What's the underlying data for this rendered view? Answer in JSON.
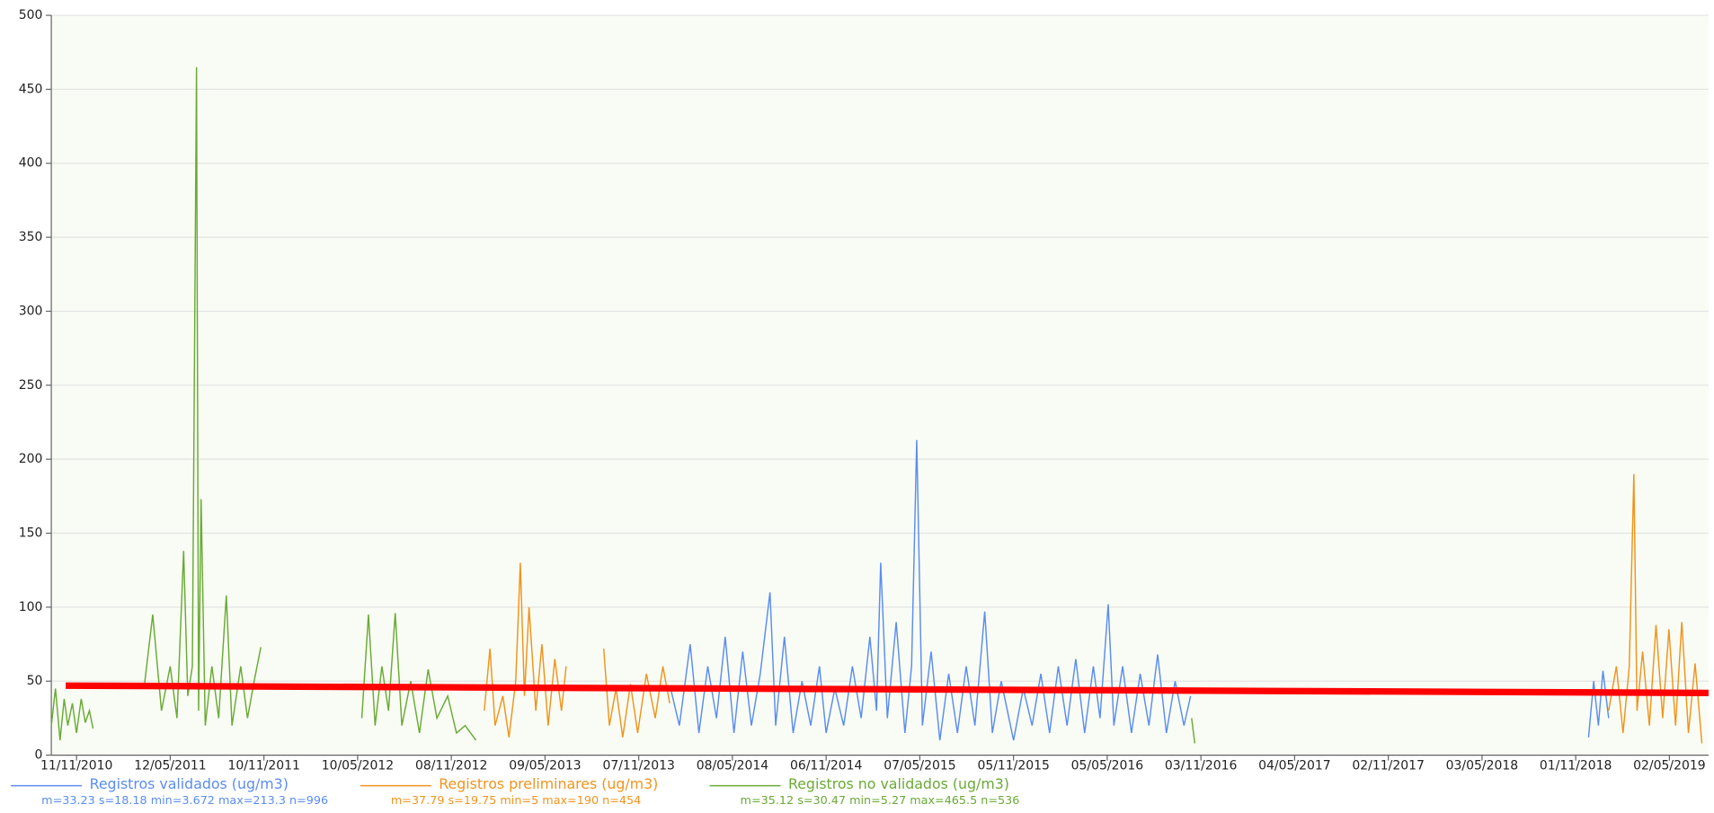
{
  "chart_data": {
    "type": "line",
    "xlim": [
      "2010-09-23",
      "2019-07-17"
    ],
    "xticks": [
      {
        "value": "2010-11-11",
        "label": "11/11/2010"
      },
      {
        "value": "2011-05-12",
        "label": "12/05/2011"
      },
      {
        "value": "2011-11-10",
        "label": "10/11/2011"
      },
      {
        "value": "2012-05-10",
        "label": "10/05/2012"
      },
      {
        "value": "2012-11-08",
        "label": "08/11/2012"
      },
      {
        "value": "2013-05-09",
        "label": "09/05/2013"
      },
      {
        "value": "2013-11-07",
        "label": "07/11/2013"
      },
      {
        "value": "2014-05-08",
        "label": "08/05/2014"
      },
      {
        "value": "2014-11-06",
        "label": "06/11/2014"
      },
      {
        "value": "2015-05-07",
        "label": "07/05/2015"
      },
      {
        "value": "2015-11-05",
        "label": "05/11/2015"
      },
      {
        "value": "2016-05-05",
        "label": "05/05/2016"
      },
      {
        "value": "2016-11-03",
        "label": "03/11/2016"
      },
      {
        "value": "2017-05-04",
        "label": "04/05/2017"
      },
      {
        "value": "2017-11-02",
        "label": "02/11/2017"
      },
      {
        "value": "2018-05-03",
        "label": "03/05/2018"
      },
      {
        "value": "2018-11-01",
        "label": "01/11/2018"
      },
      {
        "value": "2019-05-02",
        "label": "02/05/2019"
      }
    ],
    "ylim": [
      0,
      500
    ],
    "yticks": [
      0,
      50,
      100,
      150,
      200,
      250,
      300,
      350,
      400,
      450,
      500
    ],
    "grid": true,
    "series": [
      {
        "name": "Registros validados (ug/m3)",
        "stats": "m=33.23 s=18.18 min=3.672 max=213.3 n=996",
        "color": "#5b8def",
        "x": [
          "2014-01-08",
          "2014-01-25",
          "2014-02-15",
          "2014-03-04",
          "2014-03-21",
          "2014-04-07",
          "2014-04-24",
          "2014-05-11",
          "2014-05-28",
          "2014-06-14",
          "2014-07-01",
          "2014-07-20",
          "2014-07-31",
          "2014-08-17",
          "2014-09-03",
          "2014-09-20",
          "2014-10-07",
          "2014-10-24",
          "2014-11-06",
          "2014-11-23",
          "2014-12-10",
          "2014-12-27",
          "2015-01-13",
          "2015-01-30",
          "2015-02-12",
          "2015-02-20",
          "2015-03-05",
          "2015-03-22",
          "2015-04-08",
          "2015-04-21",
          "2015-05-01",
          "2015-05-12",
          "2015-05-29",
          "2015-06-15",
          "2015-07-02",
          "2015-07-19",
          "2015-08-05",
          "2015-08-22",
          "2015-09-10",
          "2015-09-25",
          "2015-10-12",
          "2015-11-05",
          "2015-11-24",
          "2015-12-11",
          "2015-12-28",
          "2016-01-14",
          "2016-01-31",
          "2016-02-17",
          "2016-03-05",
          "2016-03-22",
          "2016-04-08",
          "2016-04-21",
          "2016-05-07",
          "2016-05-18",
          "2016-06-04",
          "2016-06-21",
          "2016-07-08",
          "2016-07-25",
          "2016-08-11",
          "2016-08-28",
          "2016-09-14",
          "2016-10-01",
          "2016-10-14",
          null,
          "2018-11-26",
          "2018-12-06",
          "2018-12-15",
          "2018-12-24",
          "2019-01-04"
        ],
        "values": [
          45,
          20,
          75,
          15,
          60,
          25,
          80,
          15,
          70,
          20,
          55,
          110,
          20,
          80,
          15,
          50,
          20,
          60,
          15,
          45,
          20,
          60,
          25,
          80,
          30,
          130,
          25,
          90,
          15,
          60,
          213,
          20,
          70,
          10,
          55,
          15,
          60,
          20,
          97,
          15,
          50,
          10,
          45,
          20,
          55,
          15,
          60,
          20,
          65,
          15,
          60,
          25,
          102,
          20,
          60,
          15,
          55,
          20,
          68,
          15,
          50,
          20,
          40,
          null,
          12,
          50,
          20,
          57,
          25
        ]
      },
      {
        "name": "Registros preliminares (ug/m3)",
        "stats": "m=37.79 s=19.75 min=5 max=190 n=454",
        "color": "#f0941e",
        "x": [
          "2013-01-11",
          "2013-01-22",
          "2013-02-01",
          "2013-02-16",
          "2013-02-28",
          "2013-03-13",
          "2013-03-22",
          "2013-03-30",
          "2013-04-08",
          "2013-04-21",
          "2013-05-03",
          "2013-05-15",
          "2013-05-28",
          "2013-06-10",
          "2013-06-19",
          null,
          "2013-08-31",
          "2013-09-11",
          "2013-09-24",
          "2013-10-07",
          "2013-10-22",
          "2013-11-05",
          "2013-11-22",
          "2013-12-09",
          "2013-12-24",
          "2014-01-06",
          null,
          "2019-01-04",
          "2019-01-19",
          "2019-02-01",
          "2019-02-13",
          "2019-02-22",
          "2019-02-28",
          "2019-03-11",
          "2019-03-24",
          "2019-04-06",
          "2019-04-19",
          "2019-05-01",
          "2019-05-14",
          "2019-05-26",
          "2019-06-08",
          "2019-06-21",
          "2019-07-04"
        ],
        "values": [
          30,
          72,
          20,
          40,
          12,
          50,
          130,
          40,
          100,
          30,
          75,
          20,
          65,
          30,
          60,
          null,
          72,
          20,
          45,
          12,
          48,
          15,
          55,
          25,
          60,
          35,
          null,
          30,
          60,
          15,
          60,
          190,
          30,
          70,
          20,
          88,
          25,
          85,
          20,
          90,
          15,
          62,
          8
        ]
      },
      {
        "name": "Registros no validados (ug/m3)",
        "stats": "m=35.12 s=30.47 min=5.27 max=465.5 n=536",
        "color": "#6aaa36",
        "x": [
          "2010-09-23",
          "2010-10-01",
          "2010-10-10",
          "2010-10-18",
          "2010-10-25",
          "2010-11-03",
          "2010-11-11",
          "2010-11-20",
          "2010-11-28",
          "2010-12-06",
          "2010-12-13",
          null,
          "2011-03-22",
          "2011-04-08",
          "2011-04-25",
          "2011-05-12",
          "2011-05-25",
          "2011-06-07",
          "2011-06-15",
          "2011-06-24",
          "2011-07-02",
          "2011-07-06",
          "2011-07-11",
          "2011-07-19",
          "2011-08-01",
          "2011-08-14",
          "2011-08-29",
          "2011-09-09",
          "2011-09-26",
          "2011-10-09",
          "2011-10-22",
          "2011-11-04",
          null,
          "2012-05-18",
          "2012-05-31",
          "2012-06-13",
          "2012-06-26",
          "2012-07-09",
          "2012-07-22",
          "2012-08-04",
          "2012-08-21",
          "2012-09-07",
          "2012-09-24",
          "2012-10-11",
          "2012-11-01",
          "2012-11-18",
          "2012-12-05",
          "2012-12-26",
          null,
          "2016-10-16",
          "2016-10-22"
        ],
        "values": [
          20,
          45,
          10,
          38,
          20,
          35,
          15,
          38,
          22,
          30,
          18,
          null,
          45,
          95,
          30,
          60,
          25,
          138,
          40,
          60,
          465,
          30,
          173,
          20,
          60,
          25,
          108,
          20,
          60,
          25,
          50,
          73,
          null,
          25,
          95,
          20,
          60,
          30,
          96,
          20,
          50,
          15,
          58,
          25,
          40,
          15,
          20,
          10,
          null,
          25,
          8
        ]
      }
    ],
    "trend": {
      "color": "#ff0000",
      "x": [
        "2010-10-21",
        "2019-07-17"
      ],
      "values": [
        47,
        42
      ]
    }
  }
}
